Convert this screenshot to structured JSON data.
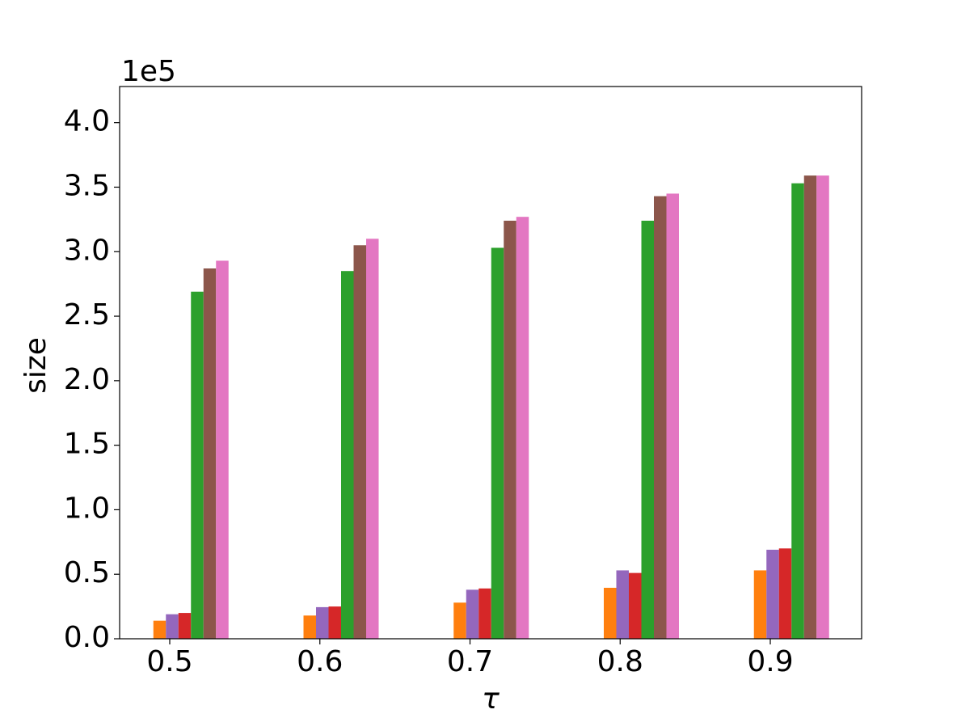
{
  "chart_data": {
    "type": "bar",
    "offset_text": "1e5",
    "xlabel": "τ",
    "ylabel": "size",
    "categories": [
      "0.5",
      "0.6",
      "0.7",
      "0.8",
      "0.9"
    ],
    "series": [
      {
        "color": "#ff7f0e",
        "values": [
          0.14,
          0.18,
          0.28,
          0.395,
          0.53
        ]
      },
      {
        "color": "#9467bd",
        "values": [
          0.19,
          0.245,
          0.38,
          0.53,
          0.69
        ]
      },
      {
        "color": "#d62728",
        "values": [
          0.2,
          0.25,
          0.39,
          0.51,
          0.7
        ]
      },
      {
        "color": "#2ca02c",
        "values": [
          2.69,
          2.85,
          3.03,
          3.24,
          3.53
        ]
      },
      {
        "color": "#8c564b",
        "values": [
          2.87,
          3.05,
          3.24,
          3.43,
          3.59
        ]
      },
      {
        "color": "#e377c2",
        "values": [
          2.93,
          3.1,
          3.27,
          3.45,
          3.59
        ]
      }
    ],
    "ylim": [
      0,
      4.28
    ],
    "yticks": [
      {
        "value": 0,
        "label": "0.0"
      },
      0.5,
      {
        "value": 1,
        "label": "1.0"
      },
      1.5,
      {
        "value": 2,
        "label": "2.0"
      },
      2.5,
      {
        "value": 3,
        "label": "3.0"
      },
      3.5,
      {
        "value": 4,
        "label": "4.0"
      }
    ]
  }
}
